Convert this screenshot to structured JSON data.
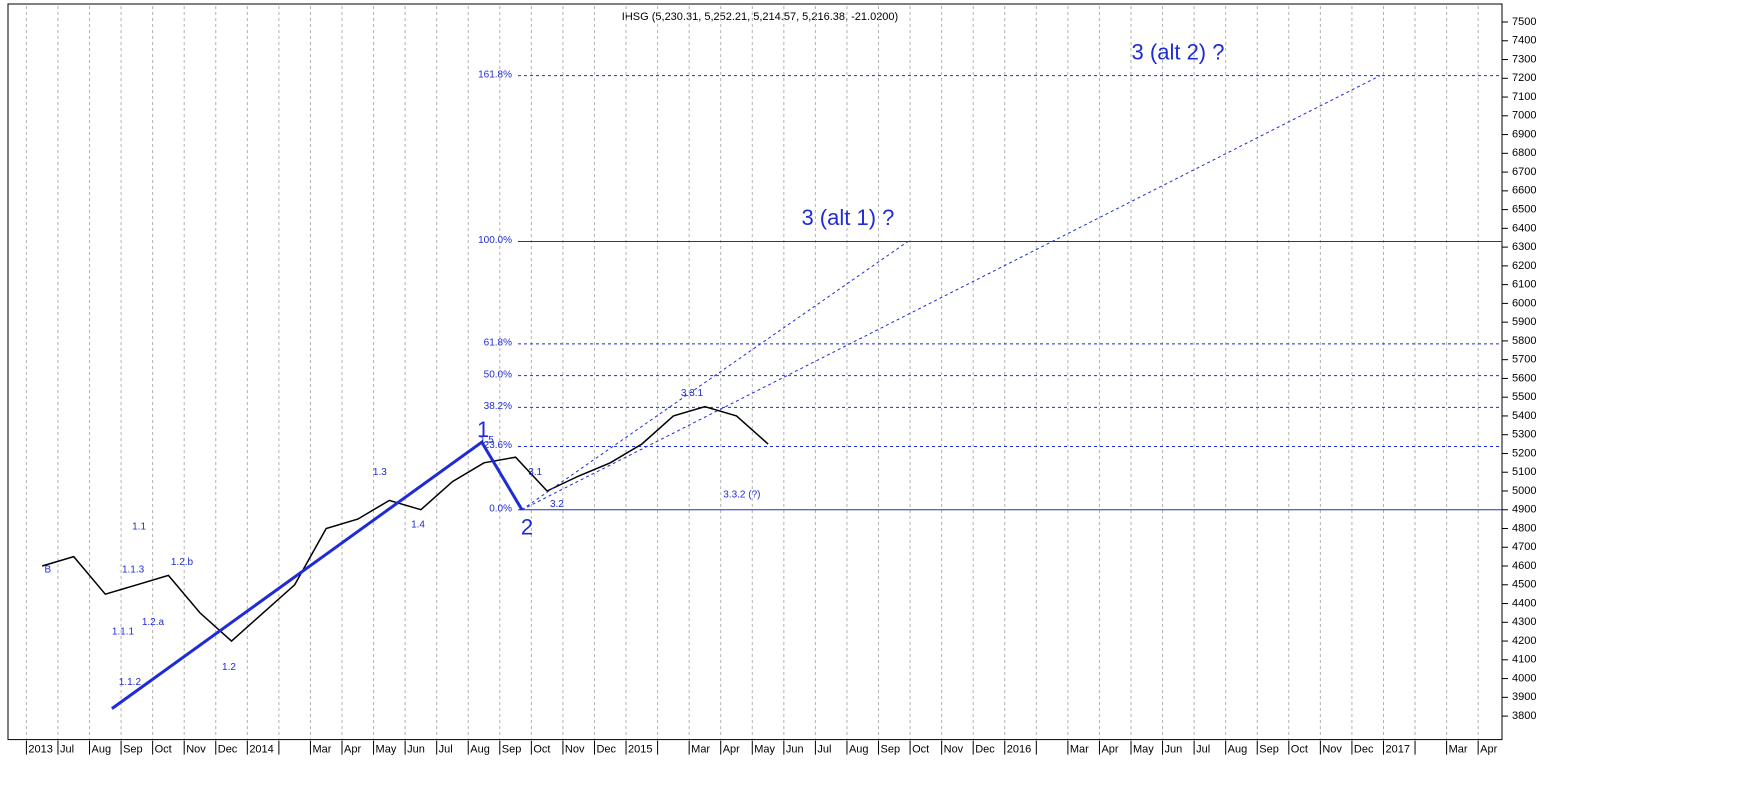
{
  "chart_data": {
    "type": "line",
    "title": "IHSG (5,230.31, 5,252.21, 5,214.57, 5,216.38, -21.0200)",
    "categories": [
      "2013",
      "Jul",
      "Aug",
      "Sep",
      "Oct",
      "Nov",
      "Dec",
      "2014",
      null,
      "Mar",
      "Apr",
      "May",
      "Jun",
      "Jul",
      "Aug",
      "Sep",
      "Oct",
      "Nov",
      "Dec",
      "2015",
      null,
      "Mar",
      "Apr",
      "May",
      "Jun",
      "Jul",
      "Aug",
      "Sep",
      "Oct",
      "Nov",
      "Dec",
      "2016",
      null,
      "Mar",
      "Apr",
      "May",
      "Jun",
      "Jul",
      "Aug",
      "Sep",
      "Oct",
      "Nov",
      "Dec",
      "2017",
      null,
      "Mar",
      "Apr"
    ],
    "series": [
      {
        "name": "IHSG",
        "color": "#000000",
        "values": [
          4600,
          4650,
          4450,
          4500,
          4550,
          4350,
          4200,
          4350,
          4500,
          4800,
          4850,
          4950,
          4900,
          5050,
          5150,
          5180,
          5000,
          5080,
          5150,
          5250,
          5400,
          5450,
          5400,
          5250,
          null,
          null,
          null,
          null,
          null,
          null,
          null,
          null,
          null,
          null,
          null,
          null,
          null,
          null,
          null,
          null,
          null,
          null,
          null,
          null,
          null,
          null,
          null
        ]
      }
    ],
    "ylim": [
      3680,
      7580
    ],
    "yticks": [
      3800,
      3900,
      4000,
      4100,
      4200,
      4300,
      4400,
      4500,
      4600,
      4700,
      4800,
      4900,
      5000,
      5100,
      5200,
      5300,
      5400,
      5500,
      5600,
      5700,
      5800,
      5900,
      6000,
      6100,
      6200,
      6300,
      6400,
      6500,
      6600,
      6700,
      6800,
      6900,
      7000,
      7100,
      7200,
      7300,
      7400,
      7500
    ],
    "grid": true,
    "fib_levels": [
      {
        "label": "0.0%",
        "value": 4900,
        "style": "solid"
      },
      {
        "label": "23.6%",
        "value": 5237,
        "style": "dashed"
      },
      {
        "label": "38.2%",
        "value": 5446,
        "style": "dashed"
      },
      {
        "label": "50.0%",
        "value": 5615,
        "style": "dashed"
      },
      {
        "label": "61.8%",
        "value": 5784,
        "style": "dashed"
      },
      {
        "label": "100.0%",
        "value": 6330,
        "style": "solid"
      },
      {
        "label": "161.8%",
        "value": 7214,
        "style": "dashed"
      }
    ],
    "level_color": "#1f2bd6",
    "wave_lines": [
      {
        "style": "thick",
        "x": [
          2.71,
          14.43,
          15.7
        ],
        "y": [
          3840,
          5260,
          4900
        ]
      },
      {
        "style": "dashed",
        "x": [
          15.7,
          27.93
        ],
        "y": [
          4900,
          6330
        ]
      },
      {
        "style": "dashed",
        "x": [
          15.7,
          42.89
        ],
        "y": [
          4900,
          7214
        ]
      }
    ],
    "annotations": [
      {
        "text": "B",
        "x": 0.68,
        "y": 4580,
        "size": "small"
      },
      {
        "text": "1.1",
        "x": 3.57,
        "y": 4810,
        "size": "small"
      },
      {
        "text": "1.1.3",
        "x": 3.38,
        "y": 4580,
        "size": "small"
      },
      {
        "text": "1.1.1",
        "x": 3.06,
        "y": 4250,
        "size": "small"
      },
      {
        "text": "1.1.2",
        "x": 3.28,
        "y": 3980,
        "size": "small"
      },
      {
        "text": "1.2.a",
        "x": 4.01,
        "y": 4300,
        "size": "small"
      },
      {
        "text": "1.2.b",
        "x": 4.93,
        "y": 4620,
        "size": "small"
      },
      {
        "text": "1.2",
        "x": 6.42,
        "y": 4060,
        "size": "small"
      },
      {
        "text": "1.3",
        "x": 11.2,
        "y": 5100,
        "size": "small"
      },
      {
        "text": "1.4",
        "x": 12.41,
        "y": 4820,
        "size": "small"
      },
      {
        "text": "1.5",
        "x": 14.59,
        "y": 5270,
        "size": "small"
      },
      {
        "text": "3.1",
        "x": 16.12,
        "y": 5100,
        "size": "small"
      },
      {
        "text": "3.2",
        "x": 16.81,
        "y": 4930,
        "size": "small"
      },
      {
        "text": "3.3.1",
        "x": 21.09,
        "y": 5520,
        "size": "small"
      },
      {
        "text": "3.3.2 (?)",
        "x": 22.67,
        "y": 4980,
        "size": "small"
      },
      {
        "text": "1",
        "x": 14.47,
        "y": 5320,
        "size": "big"
      },
      {
        "text": "2",
        "x": 15.86,
        "y": 4800,
        "size": "big"
      },
      {
        "text": "3 (alt 1) ?",
        "x": 26.03,
        "y": 6450,
        "size": "big"
      },
      {
        "text": "3 (alt 2) ?",
        "x": 36.49,
        "y": 7330,
        "size": "big"
      }
    ]
  }
}
